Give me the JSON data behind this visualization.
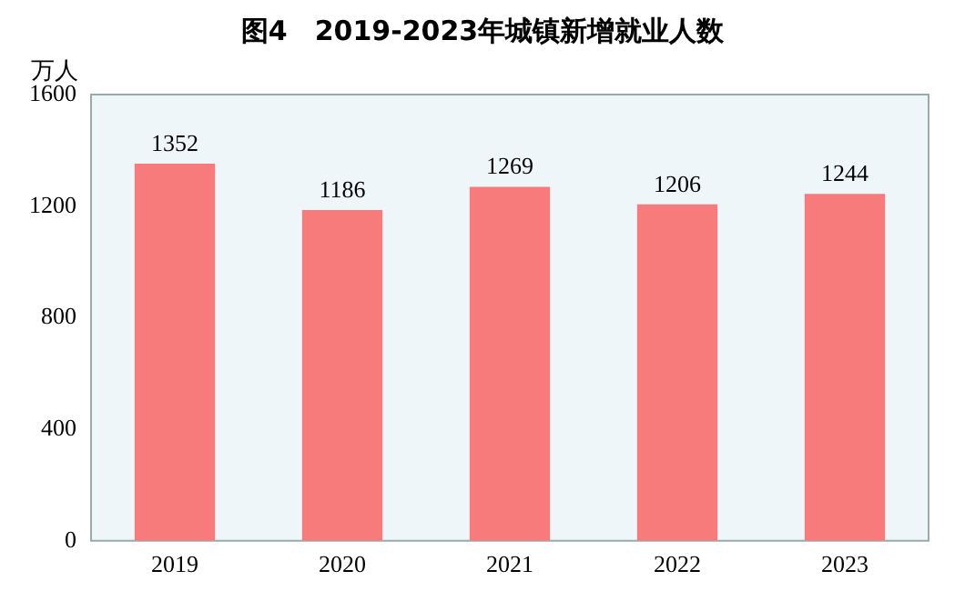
{
  "chart_data": {
    "type": "bar",
    "title": "图4　2019-2023年城镇新增就业人数",
    "ylabel": "万人",
    "categories": [
      "2019",
      "2020",
      "2021",
      "2022",
      "2023"
    ],
    "values": [
      1352,
      1186,
      1269,
      1206,
      1244
    ],
    "color": "#f77b7b",
    "ylim": [
      0,
      1600
    ],
    "yticks": [
      0,
      400,
      800,
      1200,
      1600
    ],
    "grid": false,
    "legend": false,
    "data_labels": true
  }
}
